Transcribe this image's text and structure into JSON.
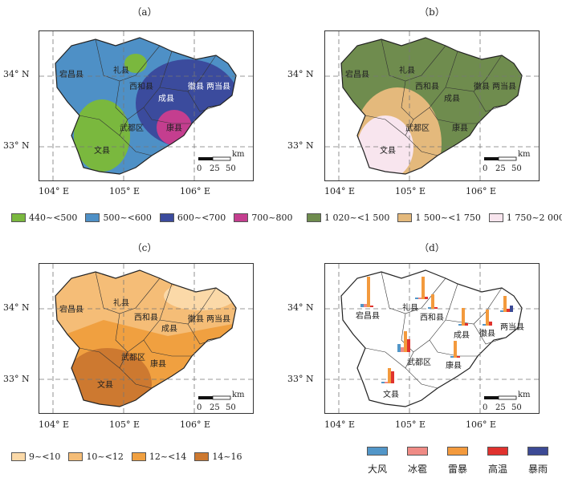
{
  "panels": {
    "a": {
      "label": "（a）",
      "legend": [
        "440~<500",
        "500~<600",
        "600~<700",
        "700~800"
      ],
      "colors": [
        "#7ab83e",
        "#4e90c6",
        "#3b4b9d",
        "#c43e8f"
      ]
    },
    "b": {
      "label": "（b）",
      "legend": [
        "1 020~<1 500",
        "1 500~<1 750",
        "1 750~2 000"
      ],
      "colors": [
        "#6f8c4e",
        "#e4b97c",
        "#f8e5ee"
      ]
    },
    "c": {
      "label": "（c）",
      "legend": [
        "9~<10",
        "10~<12",
        "12~<14",
        "14~16"
      ],
      "colors": [
        "#fbd9a8",
        "#f5bd77",
        "#f0a040",
        "#cd7930"
      ]
    },
    "d": {
      "label": "（d）",
      "legend": [
        "大风",
        "冰雹",
        "雷暴",
        "高温",
        "暴雨"
      ],
      "colors": [
        "#5296c8",
        "#ef8b85",
        "#f39a3d",
        "#e0322e",
        "#3c4a95"
      ]
    }
  },
  "axes": {
    "lat": [
      "34° N",
      "33° N"
    ],
    "lon": [
      "104° E",
      "105° E",
      "106° E"
    ]
  },
  "counties": {
    "dangchang": "宕昌县",
    "lixian": "礼县",
    "xihe": "西和县",
    "huixian": "徽县",
    "liangdang": "两当县",
    "chengxian": "成县",
    "wudu": "武都区",
    "kangxian": "康县",
    "wenxian": "文县"
  },
  "scale": {
    "ticks": [
      "0",
      "25",
      "50"
    ],
    "unit": "km"
  }
}
